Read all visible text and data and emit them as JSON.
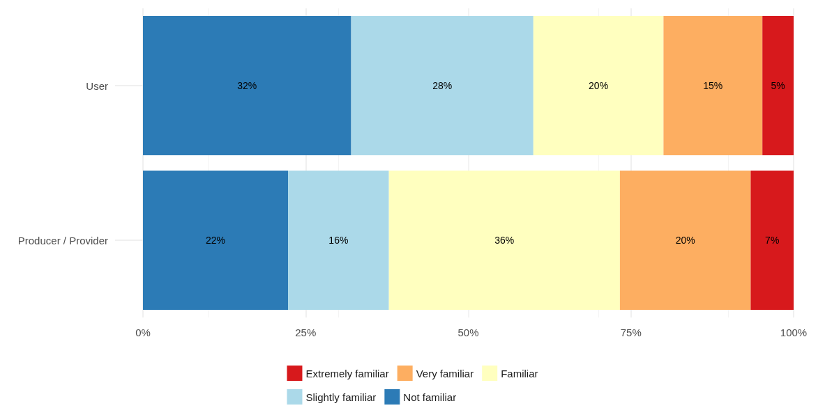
{
  "chart_data": {
    "type": "bar",
    "orientation": "horizontal",
    "stacked": true,
    "categories": [
      "User",
      "Producer / Provider"
    ],
    "series": [
      {
        "name": "Not familiar",
        "color": "#2c7bb6",
        "values": [
          32,
          22.3
        ],
        "value_labels": [
          "32%",
          "22%"
        ]
      },
      {
        "name": "Slightly familiar",
        "color": "#abd9e9",
        "values": [
          28,
          15.5
        ],
        "value_labels": [
          "28%",
          "16%"
        ]
      },
      {
        "name": "Familiar",
        "color": "#ffffbf",
        "values": [
          20,
          35.5
        ],
        "value_labels": [
          "20%",
          "36%"
        ]
      },
      {
        "name": "Very familiar",
        "color": "#fdae61",
        "values": [
          15.2,
          20.1
        ],
        "value_labels": [
          "15%",
          "20%"
        ]
      },
      {
        "name": "Extremely familiar",
        "color": "#d7191c",
        "values": [
          4.8,
          6.6
        ],
        "value_labels": [
          "5%",
          "7%"
        ]
      }
    ],
    "xlim": [
      0,
      100
    ],
    "xticks": [
      {
        "value": 0,
        "label": "0%"
      },
      {
        "value": 25,
        "label": "25%"
      },
      {
        "value": 50,
        "label": "50%"
      },
      {
        "value": 75,
        "label": "75%"
      },
      {
        "value": 100,
        "label": "100%"
      }
    ],
    "grid": true,
    "legend": "bottom"
  }
}
